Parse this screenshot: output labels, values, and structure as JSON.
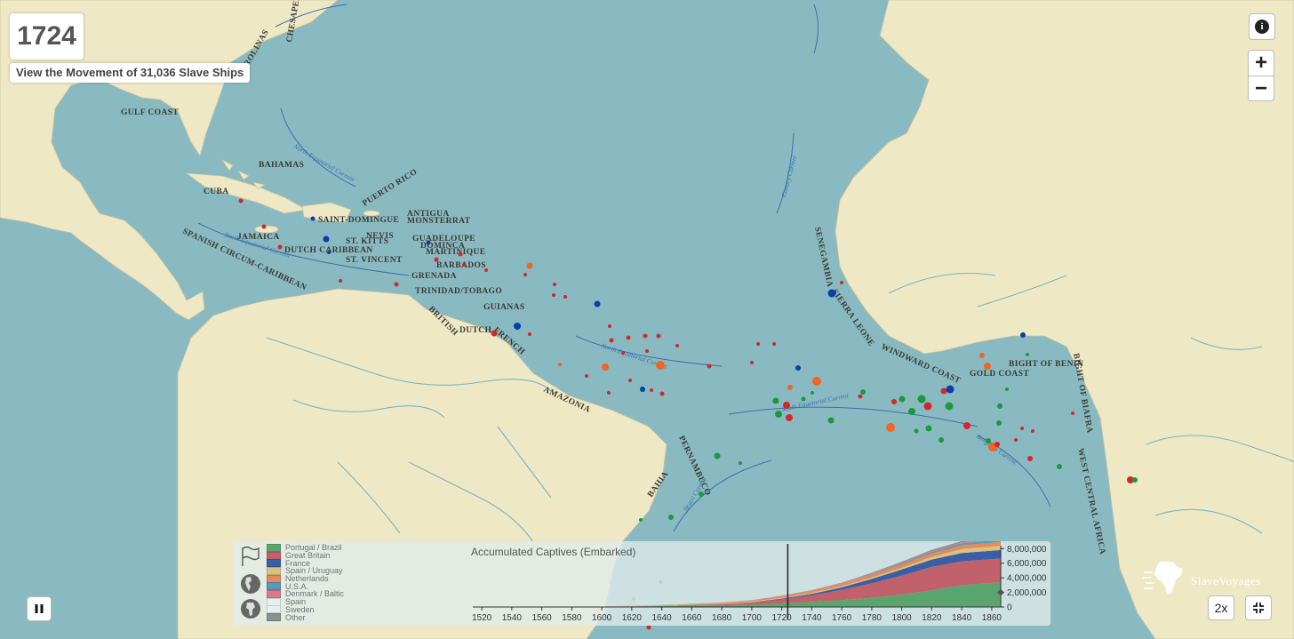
{
  "header": {
    "year": "1724",
    "movement_label": "View the Movement of 31,036 Slave Ships"
  },
  "controls": {
    "info_icon": "i",
    "zoom_in": "+",
    "zoom_out": "−",
    "speed": "2x"
  },
  "map": {
    "colors": {
      "ocean": "#89bac1",
      "land": "#eee8c4",
      "river": "#75b5c8",
      "current": "#3c6fae"
    },
    "region_labels": [
      "CHESAPEAKE",
      "CAROLINAS",
      "GULF COAST",
      "BAHAMAS",
      "CUBA",
      "SAINT-DOMINGUE",
      "JAMAICA",
      "PUERTO RICO",
      "ANTIGUA",
      "MONSTERRAT",
      "NEVIS",
      "ST. KITTS",
      "GUADELOUPE",
      "DOMINCA",
      "MARTINIQUE",
      "DUTCH CARIBBEAN",
      "ST. VINCENT",
      "BARBADOS",
      "GRENADA",
      "TRINIDAD/TOBAGO",
      "SPANISH CIRCUM-CARIBBEAN",
      "GUIANAS",
      "BRITISH",
      "DUTCH",
      "FRENCH",
      "AMAZONIA",
      "PERNAMBUCO",
      "BAHIA",
      "SENEGAMBIA",
      "SIERRA LEONE",
      "WINDWARD COAST",
      "GOLD COAST",
      "BIGHT OF BENIN",
      "BIGHT OF BIAFRA",
      "WEST CENTRAL AFRICA"
    ],
    "current_labels": [
      "North Equatorial Current",
      "North Equatorial Current",
      "Canary Current",
      "North Equatorial Current",
      "South Equatorial Current",
      "Brazil Current",
      "Benguela Current"
    ]
  },
  "legend": {
    "items": [
      {
        "label": "Portugal / Brazil",
        "color": "#5aa56e"
      },
      {
        "label": "Great Britain",
        "color": "#c0616b"
      },
      {
        "label": "France",
        "color": "#3a5fa6"
      },
      {
        "label": "Spain / Uruguay",
        "color": "#d9c27b"
      },
      {
        "label": "Netherlands",
        "color": "#e58a5c"
      },
      {
        "label": "U.S.A.",
        "color": "#5a97b8"
      },
      {
        "label": "Denmark / Baltic",
        "color": "#d67c87"
      },
      {
        "label": "Spain",
        "color": "#e8efef"
      },
      {
        "label": "Sweden",
        "color": "#e8efef"
      },
      {
        "label": "Other",
        "color": "#8a8f8f"
      }
    ]
  },
  "chart_data": {
    "type": "area",
    "title": "Accumulated Captives (Embarked)",
    "x_ticks": [
      "1520",
      "1540",
      "1560",
      "1580",
      "1600",
      "1620",
      "1640",
      "1660",
      "1680",
      "1700",
      "1720",
      "1740",
      "1760",
      "1780",
      "1800",
      "1820",
      "1840",
      "1860"
    ],
    "y_ticks": [
      "0",
      "2,000,000",
      "4,000,000",
      "6,000,000",
      "8,000,000"
    ],
    "xlim": [
      1514,
      1866
    ],
    "ylim": [
      0,
      8400000
    ],
    "current_year": 1724,
    "x": [
      1514,
      1600,
      1640,
      1680,
      1700,
      1720,
      1740,
      1760,
      1780,
      1800,
      1820,
      1840,
      1866
    ],
    "series": [
      {
        "name": "Portugal / Brazil",
        "values": [
          0,
          20000,
          120000,
          230000,
          300000,
          500000,
          700000,
          950000,
          1250000,
          1700000,
          2300000,
          3000000,
          3400000
        ]
      },
      {
        "name": "Great Britain",
        "values": [
          0,
          5000,
          40000,
          150000,
          300000,
          550000,
          900000,
          1400000,
          2000000,
          2600000,
          3200000,
          3250000,
          3250000
        ]
      },
      {
        "name": "France",
        "values": [
          0,
          0,
          5000,
          20000,
          40000,
          100000,
          200000,
          350000,
          600000,
          850000,
          1000000,
          1150000,
          1150000
        ]
      },
      {
        "name": "Spain / Uruguay",
        "values": [
          0,
          20000,
          60000,
          90000,
          100000,
          110000,
          130000,
          150000,
          180000,
          220000,
          350000,
          550000,
          600000
        ]
      },
      {
        "name": "Netherlands",
        "values": [
          0,
          0,
          30000,
          120000,
          180000,
          240000,
          290000,
          340000,
          400000,
          460000,
          500000,
          510000,
          510000
        ]
      },
      {
        "name": "U.S.A.",
        "values": [
          0,
          0,
          0,
          0,
          0,
          0,
          5000,
          20000,
          60000,
          130000,
          200000,
          260000,
          290000
        ]
      },
      {
        "name": "Denmark / Baltic",
        "values": [
          0,
          0,
          0,
          5000,
          10000,
          25000,
          40000,
          60000,
          90000,
          120000,
          140000,
          140000,
          140000
        ]
      },
      {
        "name": "Other",
        "values": [
          0,
          0,
          5000,
          10000,
          20000,
          30000,
          50000,
          70000,
          100000,
          130000,
          150000,
          170000,
          180000
        ]
      }
    ]
  },
  "branding": {
    "logo_text": "SlaveVoyages"
  }
}
